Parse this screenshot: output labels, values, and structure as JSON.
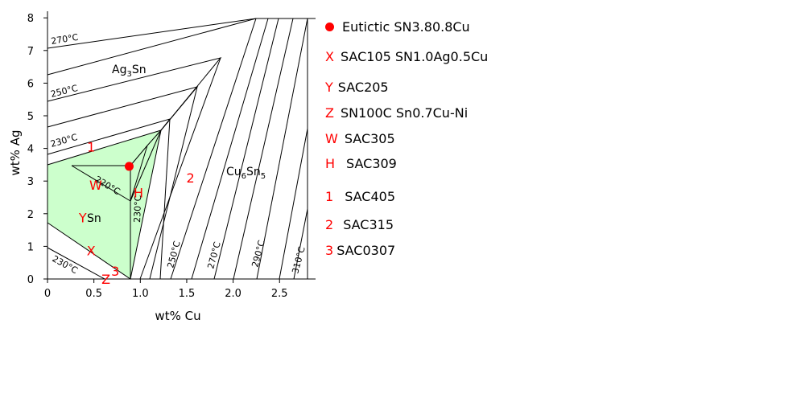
{
  "axes": {
    "xlabel": "wt% Cu",
    "ylabel": "wt% Ag",
    "x_ticks": [
      "0",
      "0.5",
      "1.0",
      "1.5",
      "2.0",
      "2.5"
    ],
    "y_ticks": [
      "0",
      "1",
      "2",
      "3",
      "4",
      "5",
      "6",
      "7",
      "8"
    ],
    "xlim": [
      0,
      2.8
    ],
    "ylim": [
      0,
      8
    ]
  },
  "phases": {
    "ag3sn": "Ag3Sn",
    "cu6sn5": "Cu6Sn5",
    "sn": "Sn"
  },
  "isotherms": [
    "270°C",
    "250°C",
    "230°C",
    "220°C",
    "230°C",
    "230°C",
    "250°C",
    "270°C",
    "290°C",
    "310°C"
  ],
  "colors": {
    "sn_region": "#ccffcc",
    "marker": "#ff0000",
    "line": "#000000"
  },
  "eutectic": {
    "cu": 0.88,
    "ag": 3.45
  },
  "markers": [
    {
      "sym": "X",
      "cu": 0.47,
      "ag": 0.88
    },
    {
      "sym": "Y",
      "cu": 0.38,
      "ag": 1.88
    },
    {
      "sym": "Z",
      "cu": 0.63,
      "ag": 0.0
    },
    {
      "sym": "W",
      "cu": 0.52,
      "ag": 2.88
    },
    {
      "sym": "H",
      "cu": 0.98,
      "ag": 2.65
    },
    {
      "sym": "1",
      "cu": 0.47,
      "ag": 4.05
    },
    {
      "sym": "2",
      "cu": 1.54,
      "ag": 3.1
    },
    {
      "sym": "3",
      "cu": 0.73,
      "ag": 0.25
    }
  ],
  "legend": [
    {
      "sym": "",
      "dot": true,
      "label": "Eutictic SN3.80.8Cu"
    },
    {
      "sym": "X",
      "label": "SAC105 SN1.0Ag0.5Cu"
    },
    {
      "sym": "Y",
      "label": "SAC205"
    },
    {
      "sym": "Z",
      "label": "SN100C Sn0.7Cu-Ni"
    },
    {
      "sym": "W",
      "label": "SAC305"
    },
    {
      "sym": "H",
      "label": "SAC309"
    },
    {
      "sym": "1",
      "label": "SAC405"
    },
    {
      "sym": "2",
      "label": "SAC315"
    },
    {
      "sym": "3",
      "label": "SAC0307"
    }
  ]
}
